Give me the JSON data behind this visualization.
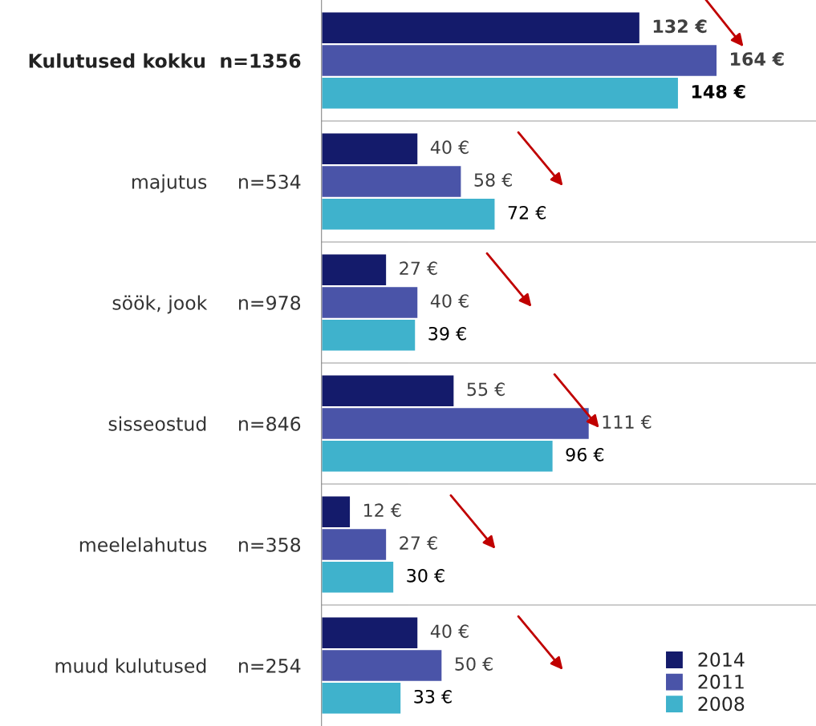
{
  "chart_data": {
    "type": "bar",
    "orientation": "horizontal",
    "categories": [
      "Kulutused kokku  n=1356",
      "majutus     n=534",
      "söök, jook     n=978",
      "sisseostud     n=846",
      "meelelahutus     n=358",
      "muud kulutused     n=254"
    ],
    "series": [
      {
        "name": "2014",
        "color": "#141b6b",
        "values": [
          132,
          40,
          27,
          55,
          12,
          40
        ],
        "value_labels": [
          "132 €",
          "40 €",
          "27 €",
          "55 €",
          "12 €",
          "40 €"
        ]
      },
      {
        "name": "2011",
        "color": "#4a54a8",
        "values": [
          164,
          58,
          40,
          111,
          27,
          50
        ],
        "value_labels": [
          "164 €",
          "58 €",
          "40 €",
          "111 €",
          "27 €",
          "50 €"
        ]
      },
      {
        "name": "2008",
        "color": "#3fb2cc",
        "values": [
          148,
          72,
          39,
          96,
          30,
          33
        ],
        "value_labels": [
          "148 €",
          "72 €",
          "39 €",
          "96 €",
          "30 €",
          "33 €"
        ]
      }
    ],
    "legend": "bottom right",
    "marker": "square",
    "tick_labels": "y"
  }
}
